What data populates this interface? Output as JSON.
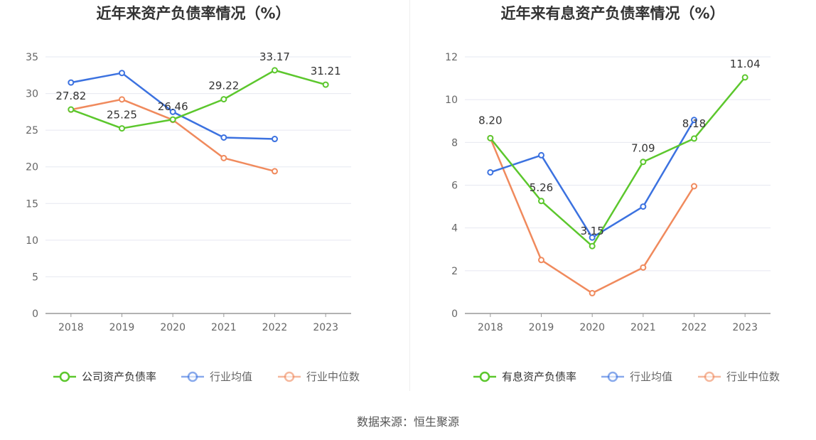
{
  "source_label": "数据来源：恒生聚源",
  "colors": {
    "company": "#5cc72d",
    "avg": "#3c72e0",
    "median": "#f08a5d",
    "grid": "#e6e8f0",
    "axis": "#666666",
    "text": "#333333"
  },
  "chart_data": [
    {
      "type": "line",
      "title": "近年来资产负债率情况（%）",
      "x": [
        "2018",
        "2019",
        "2020",
        "2021",
        "2022",
        "2023"
      ],
      "ylim": [
        0,
        35
      ],
      "yticks": [
        0,
        5,
        10,
        15,
        20,
        25,
        30,
        35
      ],
      "grid": true,
      "legend_position": "bottom-center",
      "series": [
        {
          "name": "公司资产负债率",
          "key": "company",
          "values": [
            27.82,
            25.25,
            26.46,
            29.22,
            33.17,
            31.21
          ],
          "labels": [
            "27.82",
            "25.25",
            "26.46",
            "29.22",
            "33.17",
            "31.21"
          ]
        },
        {
          "name": "行业均值",
          "key": "avg",
          "values": [
            31.5,
            32.8,
            27.5,
            24.0,
            23.8,
            null
          ]
        },
        {
          "name": "行业中位数",
          "key": "median",
          "values": [
            27.8,
            29.2,
            26.4,
            21.2,
            19.4,
            null
          ]
        }
      ]
    },
    {
      "type": "line",
      "title": "近年来有息资产负债率情况（%）",
      "x": [
        "2018",
        "2019",
        "2020",
        "2021",
        "2022",
        "2023"
      ],
      "ylim": [
        0,
        12
      ],
      "yticks": [
        0,
        2,
        4,
        6,
        8,
        10,
        12
      ],
      "grid": true,
      "legend_position": "bottom-center",
      "series": [
        {
          "name": "有息资产负债率",
          "key": "company",
          "values": [
            8.2,
            5.26,
            3.15,
            7.09,
            8.18,
            11.04
          ],
          "labels": [
            "8.20",
            "5.26",
            "3.15",
            "7.09",
            "8.18",
            "11.04"
          ]
        },
        {
          "name": "行业均值",
          "key": "avg",
          "values": [
            6.6,
            7.4,
            3.55,
            5.0,
            9.05,
            null
          ]
        },
        {
          "name": "行业中位数",
          "key": "median",
          "values": [
            8.2,
            2.5,
            0.95,
            2.15,
            5.95,
            null
          ]
        }
      ]
    }
  ]
}
